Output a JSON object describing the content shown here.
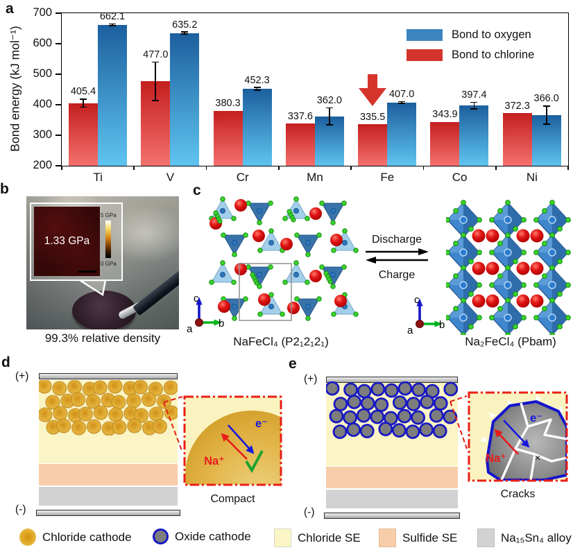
{
  "colors": {
    "oxygen_bar_top": "#1c5f9e",
    "oxygen_bar_bottom": "#5fc4f1",
    "chlorine_bar_top": "#c41f1f",
    "chlorine_bar_bottom": "#f4716d",
    "legend_oxygen": "#3d85c0",
    "legend_chlorine": "#d3352c",
    "annotation_arrow": "#d6352c",
    "chloride_se": "#fbf5c5",
    "sulfide_se": "#f8cda9",
    "alloy": "#d2d2d2",
    "oxide_particle": "#7d7d7d",
    "oxide_ring": "#1818c4",
    "inset_border": "#ea1e14"
  },
  "chart_data": {
    "type": "bar",
    "title": "",
    "xlabel": "",
    "ylabel": "Bond energy (kJ mol⁻¹)",
    "ylim": [
      200,
      700
    ],
    "yticks": [
      200,
      300,
      400,
      500,
      600,
      700
    ],
    "categories": [
      "Ti",
      "V",
      "Cr",
      "Mn",
      "Fe",
      "Co",
      "Ni"
    ],
    "series": [
      {
        "name": "Bond to chlorine",
        "color_top": "#c41f1f",
        "color_bottom": "#f4716d",
        "values": [
          405.4,
          477.0,
          380.3,
          337.6,
          335.5,
          343.9,
          372.3
        ],
        "errors": [
          13,
          63,
          0,
          0,
          0,
          0,
          0
        ]
      },
      {
        "name": "Bond to oxygen",
        "color_top": "#1c5f9e",
        "color_bottom": "#5fc4f1",
        "values": [
          662.1,
          635.2,
          452.3,
          362.0,
          407.0,
          397.4,
          366.0
        ],
        "errors": [
          3,
          3,
          4,
          28,
          3,
          11,
          30
        ]
      }
    ],
    "legend": [
      {
        "label": "Bond to oxygen",
        "color": "#3d85c0"
      },
      {
        "label": "Bond to chlorine",
        "color": "#d3352c"
      }
    ],
    "legend_position": "upper right",
    "grid": false,
    "annotation": {
      "type": "down-arrow",
      "target_category": "Fe",
      "target_series": "Bond to chlorine",
      "color": "#d6352c"
    }
  },
  "panels": {
    "a": {
      "label": "a"
    },
    "b": {
      "label": "b",
      "inset_value": "1.33 GPa",
      "colorbar_max": "5 GPa",
      "colorbar_min": "0 GPa",
      "caption": "99.3% relative density"
    },
    "c": {
      "label": "c",
      "left_structure": "NaFeCl₄ (P2₁2₁2₁)",
      "right_structure": "Na₂FeCl₄ (Pbam)",
      "forward": "Discharge",
      "reverse": "Charge",
      "axis_up": "c",
      "axis_right": "b",
      "axis_origin": "a"
    },
    "d": {
      "label": "d",
      "positive": "(+)",
      "negative": "(-)",
      "ion": "Na⁺",
      "electron": "e⁻",
      "check": "✓",
      "caption": "Compact"
    },
    "e": {
      "label": "e",
      "positive": "(+)",
      "negative": "(-)",
      "ion": "Na⁺",
      "electron": "e⁻",
      "cross": "×",
      "caption": "Cracks"
    }
  },
  "bottom_legend": {
    "items": [
      {
        "label": "Chloride cathode",
        "swatch": "gold-circle"
      },
      {
        "label": "Oxide cathode",
        "swatch": "oxide-circle"
      },
      {
        "label": "Chloride SE",
        "swatch": "pale-yellow-square"
      },
      {
        "label": "Sulfide SE",
        "swatch": "peach-square"
      },
      {
        "label": "Na₁₅Sn₄ alloy",
        "swatch": "gray-square"
      }
    ]
  }
}
